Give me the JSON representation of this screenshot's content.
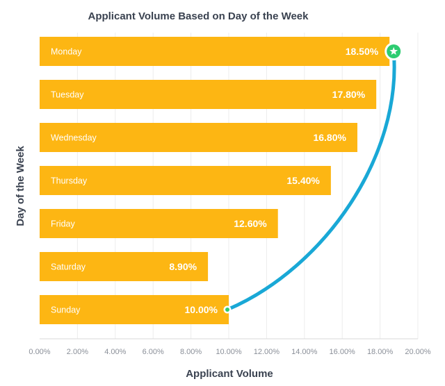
{
  "chart_data": {
    "type": "bar",
    "orientation": "horizontal",
    "title": "Applicant Volume Based on Day of the Week",
    "xlabel": "Applicant Volume",
    "ylabel": "Day of the Week",
    "categories": [
      "Monday",
      "Tuesday",
      "Wednesday",
      "Thursday",
      "Friday",
      "Saturday",
      "Sunday"
    ],
    "values": [
      18.5,
      17.8,
      16.8,
      15.4,
      12.6,
      8.9,
      10.0
    ],
    "value_labels": [
      "18.50%",
      "17.80%",
      "16.80%",
      "15.40%",
      "12.60%",
      "8.90%",
      "10.00%"
    ],
    "xlim": [
      0,
      20
    ],
    "xticks": [
      0,
      2,
      4,
      6,
      8,
      10,
      12,
      14,
      16,
      18,
      20
    ],
    "xtick_labels": [
      "0.00%",
      "2.00%",
      "4.00%",
      "6.00%",
      "8.00%",
      "10.00%",
      "12.00%",
      "14.00%",
      "16.00%",
      "18.00%",
      "20.00%"
    ],
    "grid": true,
    "legend": "none",
    "annotation": {
      "type": "curved-arrow",
      "from_category": "Sunday",
      "to_category": "Monday",
      "start_marker": "dot",
      "end_marker": "star-badge"
    },
    "colors": {
      "bar": "#fdb613",
      "curve": "#19a8d6",
      "star_badge": "#2ecc71",
      "text_dark": "#3a4250",
      "tick_text": "#8a8f98"
    }
  }
}
